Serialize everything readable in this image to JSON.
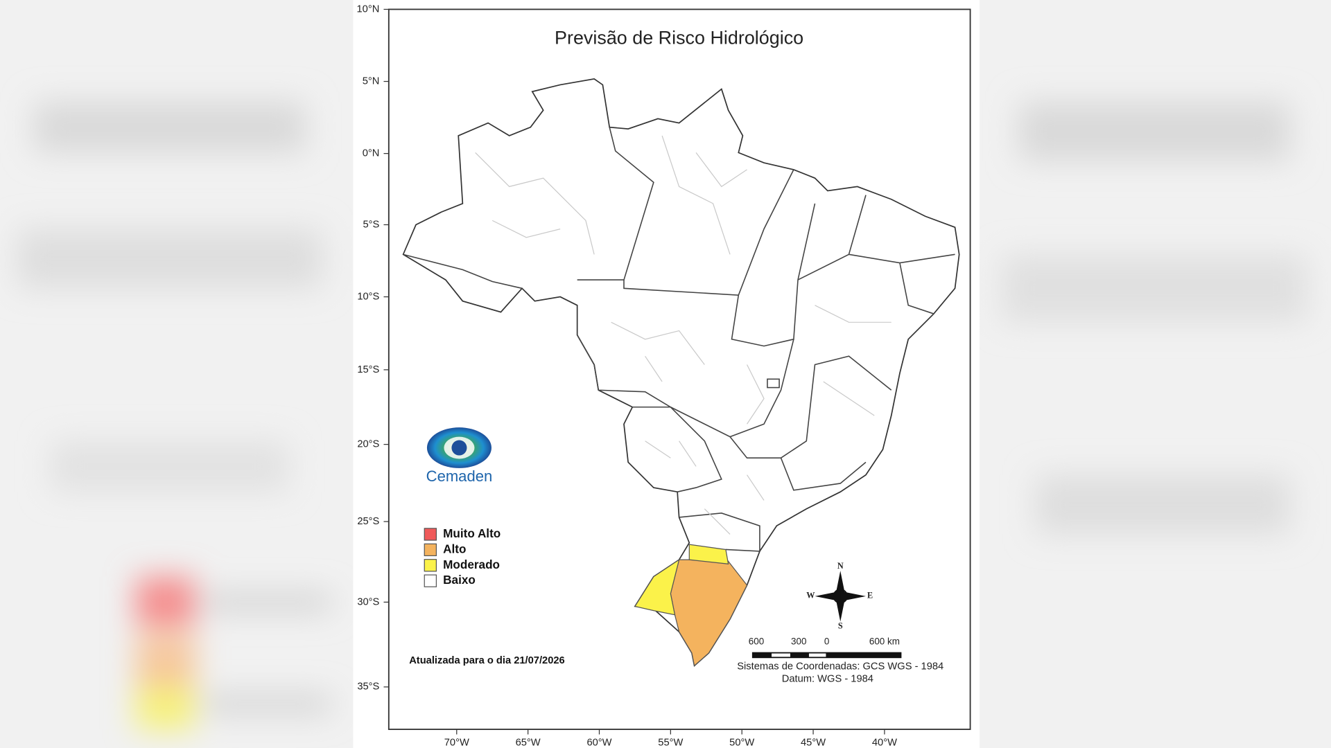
{
  "title": "Previsão de Risco Hidrológico",
  "lat_labels": [
    "10°N",
    "5°N",
    "0°N",
    "5°S",
    "10°S",
    "15°S",
    "20°S",
    "25°S",
    "30°S",
    "35°S"
  ],
  "lon_labels": [
    "70°W",
    "65°W",
    "60°W",
    "55°W",
    "50°W",
    "45°W",
    "40°W"
  ],
  "legend": [
    {
      "label": "Muito Alto",
      "color": "#f05a5a"
    },
    {
      "label": "Alto",
      "color": "#f4b35e"
    },
    {
      "label": "Moderado",
      "color": "#fbf24a"
    },
    {
      "label": "Baixo",
      "color": "#ffffff"
    }
  ],
  "logo": "Cemaden",
  "updated": "Atualizada para o dia 21/07/2026",
  "scale_labels": [
    "600",
    "300",
    "0",
    "600 km"
  ],
  "coordinate_system": "Sistemas de Coordenadas: GCS WGS - 1984",
  "datum": "Datum: WGS - 1984",
  "compass": {
    "n": "N",
    "s": "S",
    "w": "W",
    "e": "E"
  }
}
